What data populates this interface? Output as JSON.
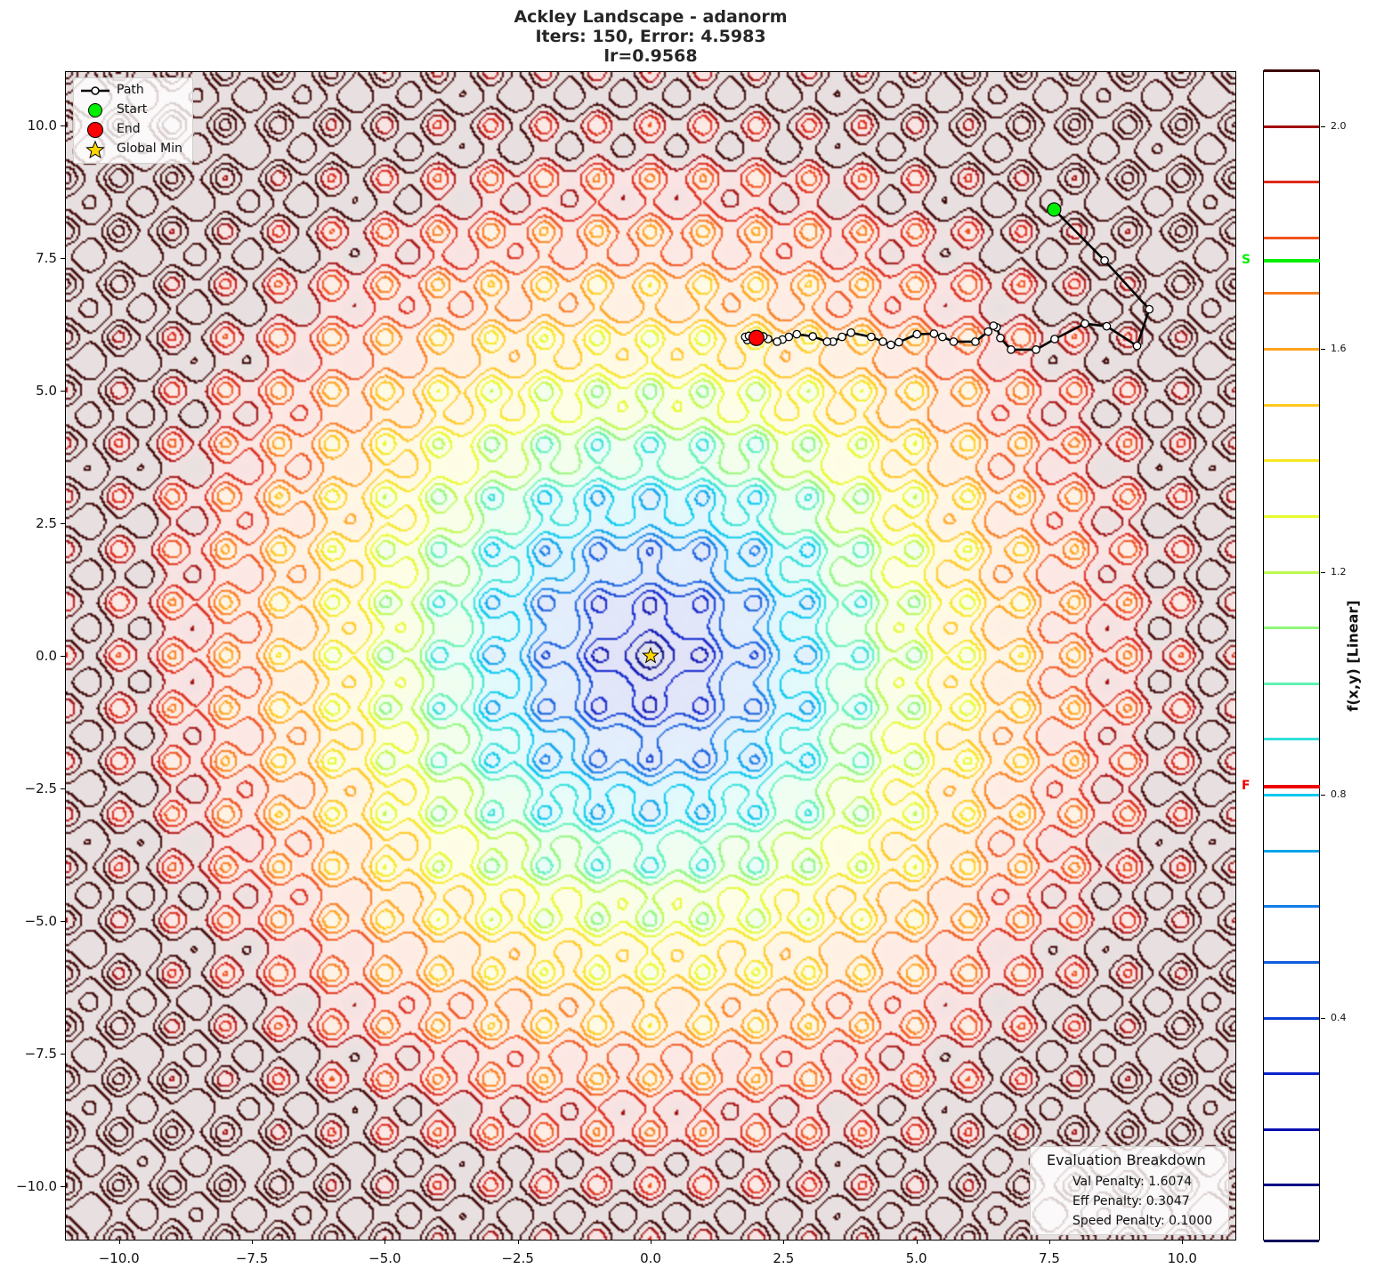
{
  "title": {
    "line1": "Ackley Landscape - adanorm",
    "line2": "Iters: 150, Error: 4.5983",
    "line3": "lr=0.9568"
  },
  "legend": {
    "items": [
      {
        "label": "Path",
        "symbol": "line-with-white-circle"
      },
      {
        "label": "Start",
        "symbol": "green-circle",
        "color": "#00ee00"
      },
      {
        "label": "End",
        "symbol": "red-circle",
        "color": "#ff0000"
      },
      {
        "label": "Global Min",
        "symbol": "gold-star",
        "color": "#ffd700"
      }
    ]
  },
  "evaluation": {
    "header": "Evaluation Breakdown",
    "val_penalty": "Val Penalty: 1.6074",
    "eff_penalty": "Eff Penalty: 0.3047",
    "speed_penalty": "Speed Penalty: 0.1000"
  },
  "colorbar": {
    "label": "f(x,y) [Linear]",
    "range": [
      0.0,
      2.1
    ],
    "ticks": [
      "0.4",
      "0.8",
      "1.2",
      "1.6",
      "2.0"
    ],
    "tick_values": [
      0.4,
      0.8,
      1.2,
      1.6,
      2.0
    ],
    "markers": [
      {
        "label": "S",
        "value": 1.759,
        "color": "#00ee00"
      },
      {
        "label": "F",
        "value": 0.815,
        "color": "#ee0000"
      }
    ]
  },
  "chart_data": {
    "type": "contour",
    "title": "Ackley Landscape - adanorm\nIters: 150, Error: 4.5983\nlr=0.9568",
    "function": "Ackley",
    "optimizer": "adanorm",
    "iterations": 150,
    "error": 4.5983,
    "learning_rate": 0.9568,
    "xlabel": "",
    "ylabel": "",
    "xlim": [
      -11,
      11
    ],
    "ylim": [
      -11,
      11
    ],
    "xticks": [
      "−10.0",
      "−7.5",
      "−5.0",
      "−2.5",
      "0.0",
      "2.5",
      "5.0",
      "7.5",
      "10.0"
    ],
    "xtick_values": [
      -10,
      -7.5,
      -5,
      -2.5,
      0,
      2.5,
      5,
      7.5,
      10
    ],
    "yticks": [
      "−10.0",
      "−7.5",
      "−5.0",
      "−2.5",
      "0.0",
      "2.5",
      "5.0",
      "7.5",
      "10.0"
    ],
    "ytick_values": [
      -10,
      -7.5,
      -5,
      -2.5,
      0,
      2.5,
      5,
      7.5,
      10
    ],
    "contour_levels": [
      0.0,
      0.1,
      0.2,
      0.3,
      0.4,
      0.5,
      0.6,
      0.7,
      0.8,
      0.9,
      1.0,
      1.1,
      1.2,
      1.3,
      1.4,
      1.5,
      1.6,
      1.7,
      1.8,
      1.9,
      2.0,
      2.1
    ],
    "colorbar_label": "f(x,y) [Linear]",
    "legend": [
      "Path",
      "Start",
      "End",
      "Global Min"
    ],
    "legend_position": "upper left",
    "global_min": [
      0.0,
      0.0
    ],
    "start": [
      7.59,
      8.41
    ],
    "end": [
      1.99,
      5.99
    ],
    "path": [
      [
        7.59,
        8.41
      ],
      [
        8.54,
        7.45
      ],
      [
        9.38,
        6.53
      ],
      [
        9.15,
        5.84
      ],
      [
        8.58,
        6.21
      ],
      [
        8.17,
        6.26
      ],
      [
        7.6,
        5.97
      ],
      [
        7.25,
        5.77
      ],
      [
        6.78,
        5.77
      ],
      [
        6.58,
        5.99
      ],
      [
        6.51,
        6.19
      ],
      [
        6.45,
        6.22
      ],
      [
        6.35,
        6.11
      ],
      [
        6.11,
        5.92
      ],
      [
        5.7,
        5.92
      ],
      [
        5.49,
        6.01
      ],
      [
        5.33,
        6.07
      ],
      [
        5.01,
        6.06
      ],
      [
        4.67,
        5.91
      ],
      [
        4.52,
        5.86
      ],
      [
        4.37,
        5.92
      ],
      [
        4.15,
        6.01
      ],
      [
        3.77,
        6.09
      ],
      [
        3.6,
        6.01
      ],
      [
        3.43,
        5.92
      ],
      [
        3.32,
        5.92
      ],
      [
        3.05,
        6.02
      ],
      [
        2.75,
        6.06
      ],
      [
        2.6,
        6.01
      ],
      [
        2.48,
        5.96
      ],
      [
        2.38,
        5.92
      ],
      [
        2.21,
        5.97
      ],
      [
        2.12,
        6.02
      ],
      [
        2.05,
        5.97
      ],
      [
        1.9,
        6.0
      ],
      [
        1.82,
        5.95
      ],
      [
        1.78,
        6.01
      ],
      [
        1.85,
        6.03
      ],
      [
        1.99,
        5.99
      ]
    ],
    "annotation_box": {
      "title": "Evaluation Breakdown",
      "Val Penalty": 1.6074,
      "Eff Penalty": 0.3047,
      "Speed Penalty": 0.1
    },
    "grid": false
  }
}
